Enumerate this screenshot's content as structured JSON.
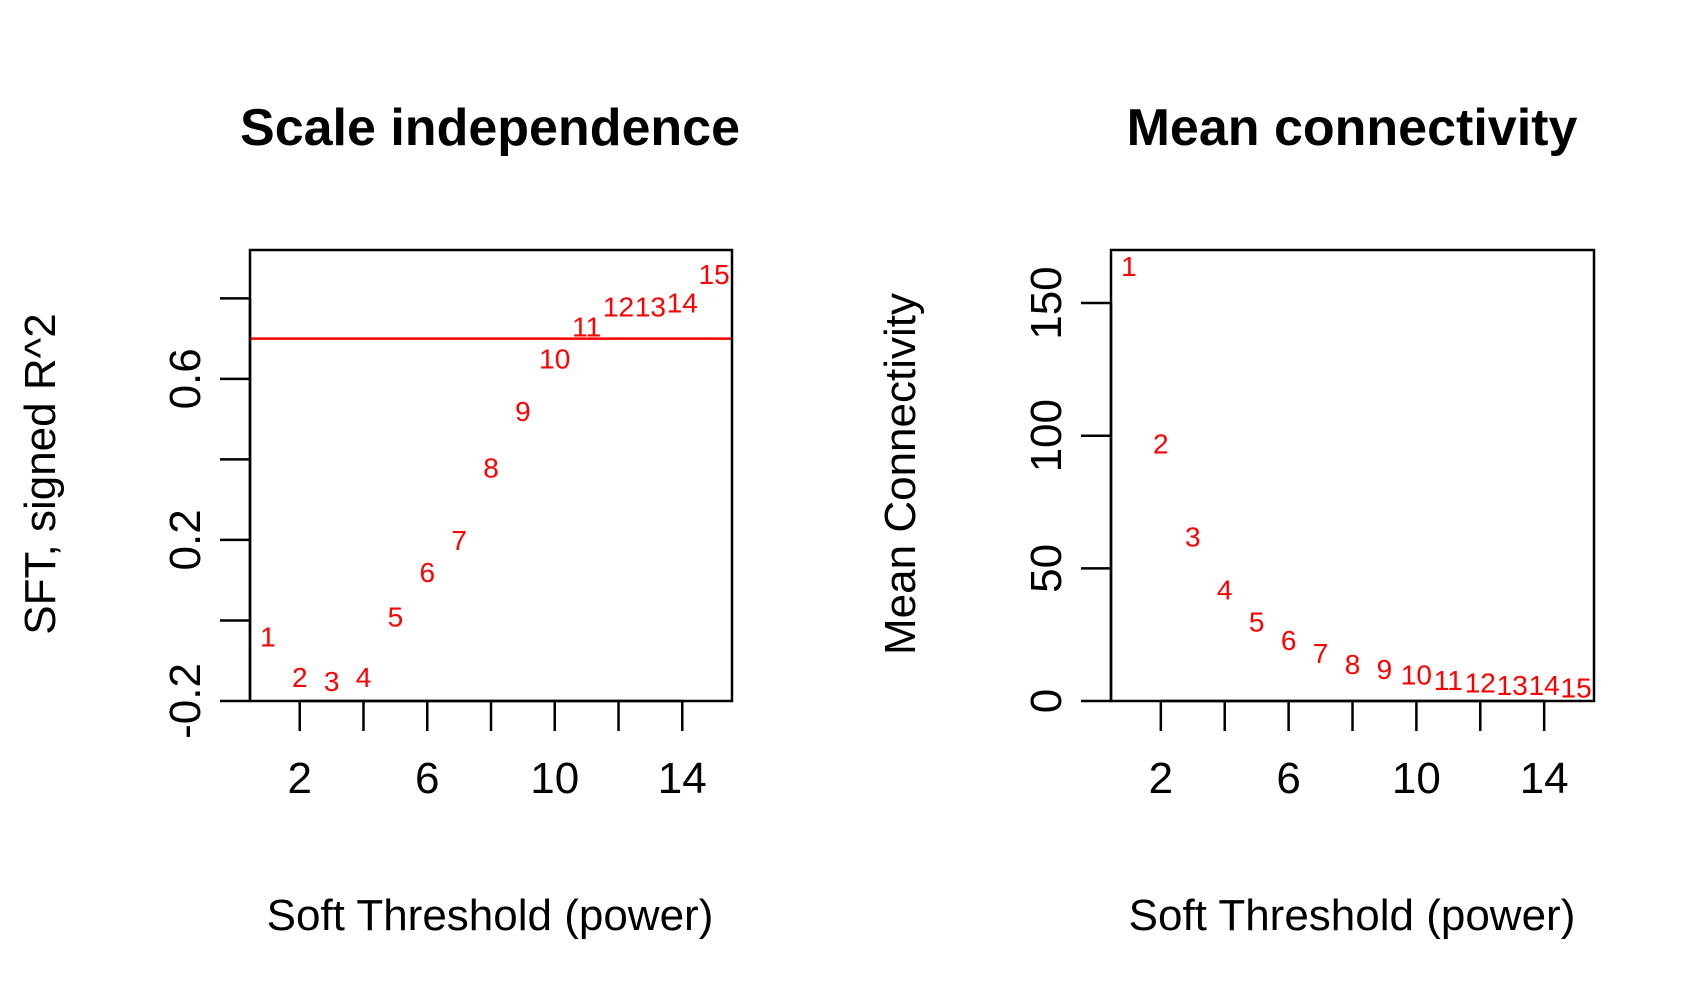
{
  "chart_data": [
    {
      "type": "scatter",
      "title": "Scale independence",
      "xlabel": "Soft Threshold (power)",
      "ylabel": "SFT, signed R^2",
      "xlim": [
        0.44,
        15.56
      ],
      "ylim": [
        -0.2,
        0.92
      ],
      "x_ticks": [
        2,
        4,
        6,
        8,
        10,
        12,
        14
      ],
      "x_tick_labels": [
        "2",
        "",
        "6",
        "",
        "10",
        "",
        "14"
      ],
      "y_ticks": [
        -0.2,
        0.0,
        0.2,
        0.4,
        0.6,
        0.8
      ],
      "y_tick_labels": [
        "-0.2",
        "",
        "0.2",
        "",
        "0.6",
        ""
      ],
      "marker": "text",
      "marker_color": "#ff0000",
      "hline": {
        "y": 0.7,
        "color": "#ff0000"
      },
      "grid": false,
      "points": [
        {
          "x": 1,
          "y": -0.04,
          "label": "1"
        },
        {
          "x": 2,
          "y": -0.14,
          "label": "2"
        },
        {
          "x": 3,
          "y": -0.15,
          "label": "3"
        },
        {
          "x": 4,
          "y": -0.14,
          "label": "4"
        },
        {
          "x": 5,
          "y": 0.01,
          "label": "5"
        },
        {
          "x": 6,
          "y": 0.12,
          "label": "6"
        },
        {
          "x": 7,
          "y": 0.2,
          "label": "7"
        },
        {
          "x": 8,
          "y": 0.38,
          "label": "8"
        },
        {
          "x": 9,
          "y": 0.52,
          "label": "9"
        },
        {
          "x": 10,
          "y": 0.65,
          "label": "10"
        },
        {
          "x": 11,
          "y": 0.73,
          "label": "11"
        },
        {
          "x": 12,
          "y": 0.78,
          "label": "12"
        },
        {
          "x": 13,
          "y": 0.78,
          "label": "13"
        },
        {
          "x": 14,
          "y": 0.79,
          "label": "14"
        },
        {
          "x": 15,
          "y": 0.86,
          "label": "15"
        }
      ]
    },
    {
      "type": "scatter",
      "title": "Mean connectivity",
      "xlabel": "Soft Threshold (power)",
      "ylabel": "Mean Connectivity",
      "xlim": [
        0.44,
        15.56
      ],
      "ylim": [
        0,
        170
      ],
      "x_ticks": [
        2,
        4,
        6,
        8,
        10,
        12,
        14
      ],
      "x_tick_labels": [
        "2",
        "",
        "6",
        "",
        "10",
        "",
        "14"
      ],
      "y_ticks": [
        0,
        50,
        100,
        150
      ],
      "y_tick_labels": [
        "0",
        "50",
        "100",
        "150"
      ],
      "marker": "text",
      "marker_color": "#ff0000",
      "grid": false,
      "points": [
        {
          "x": 1,
          "y": 164,
          "label": "1"
        },
        {
          "x": 2,
          "y": 97,
          "label": "2"
        },
        {
          "x": 3,
          "y": 62,
          "label": "3"
        },
        {
          "x": 4,
          "y": 42,
          "label": "4"
        },
        {
          "x": 5,
          "y": 30,
          "label": "5"
        },
        {
          "x": 6,
          "y": 23,
          "label": "6"
        },
        {
          "x": 7,
          "y": 18,
          "label": "7"
        },
        {
          "x": 8,
          "y": 14,
          "label": "8"
        },
        {
          "x": 9,
          "y": 12,
          "label": "9"
        },
        {
          "x": 10,
          "y": 10,
          "label": "10"
        },
        {
          "x": 11,
          "y": 8,
          "label": "11"
        },
        {
          "x": 12,
          "y": 7,
          "label": "12"
        },
        {
          "x": 13,
          "y": 6,
          "label": "13"
        },
        {
          "x": 14,
          "y": 6,
          "label": "14"
        },
        {
          "x": 15,
          "y": 5,
          "label": "15"
        }
      ]
    }
  ]
}
